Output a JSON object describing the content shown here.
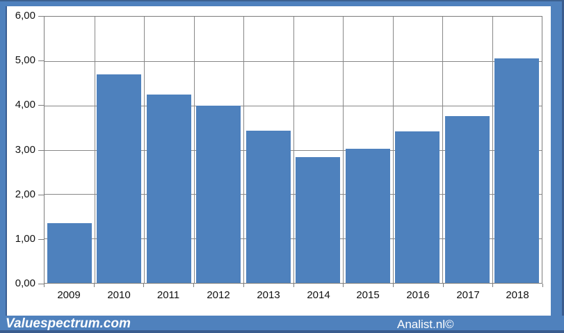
{
  "chart_data": {
    "type": "bar",
    "title": "",
    "xlabel": "",
    "ylabel": "",
    "categories": [
      "2009",
      "2010",
      "2011",
      "2012",
      "2013",
      "2014",
      "2015",
      "2016",
      "2017",
      "2018"
    ],
    "values": [
      1.35,
      4.7,
      4.24,
      4.0,
      3.43,
      2.84,
      3.03,
      3.41,
      3.76,
      5.06
    ],
    "ylim": [
      0,
      6
    ],
    "y_tick_step": 1,
    "y_tick_labels": [
      "0,00",
      "1,00",
      "2,00",
      "3,00",
      "4,00",
      "5,00",
      "6,00"
    ],
    "grid": "both",
    "legend": "none",
    "bar_color": "#4e81bd",
    "gridline_color": "#878787",
    "frame_color": "#4f81bd",
    "frame_dark_color": "#3a5c8e",
    "label_color": "#111111"
  },
  "footer": {
    "brand_text": "Valuespectrum.com",
    "credit_text": "Analist.nl©",
    "text_color": "#ffffff"
  }
}
